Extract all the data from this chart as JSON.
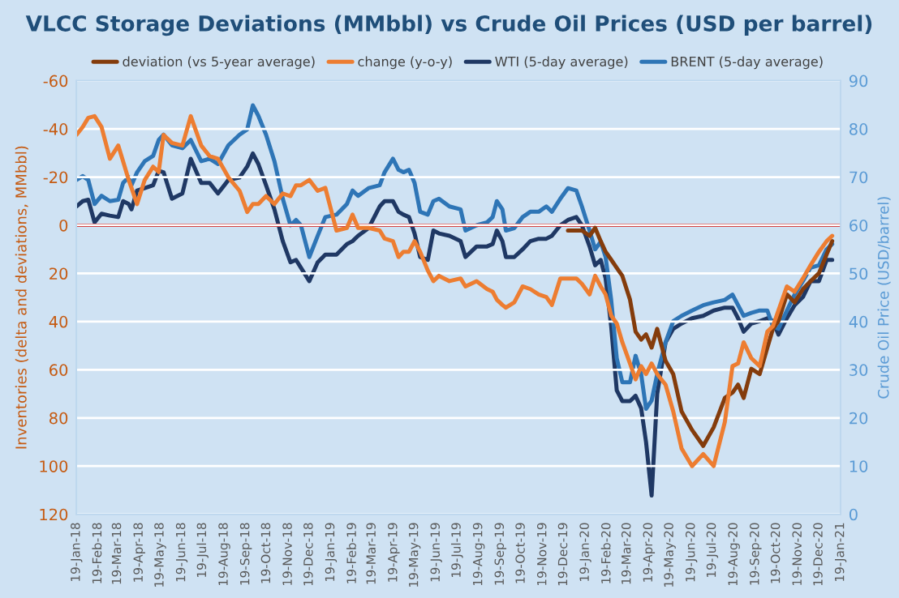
{
  "chart_data": {
    "type": "line",
    "title": "VLCC Storage Deviations (MMbbl) vs Crude Oil Prices (USD per barrel)",
    "ylabel": "Inventories (delta and deviations, MMbbl)",
    "y2label": "Crude Oil Price (USD/barrel)",
    "x": [
      "2018-01-19",
      "2018-01-28",
      "2018-02-05",
      "2018-02-14",
      "2018-02-24",
      "2018-03-08",
      "2018-03-20",
      "2018-03-27",
      "2018-04-04",
      "2018-04-08",
      "2018-04-16",
      "2018-04-27",
      "2018-05-09",
      "2018-05-17",
      "2018-05-24",
      "2018-06-05",
      "2018-06-20",
      "2018-07-02",
      "2018-07-17",
      "2018-07-29",
      "2018-08-10",
      "2018-08-25",
      "2018-09-10",
      "2018-09-21",
      "2018-09-29",
      "2018-10-07",
      "2018-10-18",
      "2018-10-30",
      "2018-11-11",
      "2018-11-22",
      "2018-11-30",
      "2018-12-07",
      "2018-12-19",
      "2018-12-31",
      "2019-01-11",
      "2019-01-27",
      "2019-02-11",
      "2019-02-19",
      "2019-02-27",
      "2019-03-14",
      "2019-03-30",
      "2019-04-06",
      "2019-04-18",
      "2019-04-26",
      "2019-05-03",
      "2019-05-11",
      "2019-05-19",
      "2019-05-27",
      "2019-06-07",
      "2019-06-15",
      "2019-06-23",
      "2019-07-08",
      "2019-07-24",
      "2019-07-31",
      "2019-08-16",
      "2019-08-31",
      "2019-09-08",
      "2019-09-14",
      "2019-09-22",
      "2019-09-27",
      "2019-10-09",
      "2019-10-21",
      "2019-11-01",
      "2019-11-13",
      "2019-11-24",
      "2019-12-02",
      "2019-12-14",
      "2019-12-25",
      "2020-01-06",
      "2020-01-14",
      "2020-01-25",
      "2020-02-02",
      "2020-02-10",
      "2020-02-17",
      "2020-02-25",
      "2020-03-04",
      "2020-03-12",
      "2020-03-23",
      "2020-03-31",
      "2020-04-08",
      "2020-04-15",
      "2020-04-23",
      "2020-05-01",
      "2020-05-13",
      "2020-05-24",
      "2020-06-05",
      "2020-06-20",
      "2020-07-06",
      "2020-07-21",
      "2020-08-06",
      "2020-08-17",
      "2020-08-25",
      "2020-09-02",
      "2020-09-13",
      "2020-09-25",
      "2020-10-06",
      "2020-10-14",
      "2020-10-22",
      "2020-11-03",
      "2020-11-14",
      "2020-11-26",
      "2020-12-07",
      "2020-12-19",
      "2020-12-30",
      "2021-01-07"
    ],
    "series": [
      {
        "name": "deviation (vs 5-year average)",
        "color": "#843c0c",
        "x": [
          "2019-12-25",
          "2020-01-06",
          "2020-01-14",
          "2020-01-25",
          "2020-02-02",
          "2020-02-10",
          "2020-02-17",
          "2020-02-25",
          "2020-03-04",
          "2020-03-12",
          "2020-03-23",
          "2020-03-31",
          "2020-04-08",
          "2020-04-15",
          "2020-04-23",
          "2020-05-01",
          "2020-05-13",
          "2020-05-24",
          "2020-06-05",
          "2020-06-20",
          "2020-07-06",
          "2020-07-21",
          "2020-08-06",
          "2020-08-17",
          "2020-08-25",
          "2020-09-02",
          "2020-09-13",
          "2020-09-25",
          "2020-10-06",
          "2020-10-14",
          "2020-10-22",
          "2020-11-03",
          "2020-11-14",
          "2020-11-26",
          "2020-12-07",
          "2020-12-19",
          "2020-12-30",
          "2021-01-07"
        ],
        "values": [
          2.2,
          2.2,
          2.2,
          4.4,
          1.1,
          6.6,
          11,
          14.3,
          17.7,
          21,
          30.9,
          44.2,
          47.5,
          45.3,
          50.8,
          43,
          56.3,
          61.8,
          77.3,
          85,
          91.6,
          83.9,
          71.7,
          69.5,
          66.2,
          71.7,
          59.6,
          61.8,
          50.8,
          43,
          39.7,
          28.7,
          32,
          26.5,
          23.2,
          19.9,
          12.1,
          6.6
        ]
      },
      {
        "name": "change (y-o-y)",
        "color": "#ed7d31",
        "values": [
          -37.5,
          -40.8,
          -44.6,
          -45.3,
          -40.8,
          -27.6,
          -33.1,
          -26.5,
          -18.8,
          -15.5,
          -8.8,
          -18.8,
          -24.3,
          -22.1,
          -37.5,
          -34.2,
          -33.1,
          -45.3,
          -33.1,
          -28.7,
          -27.6,
          -19.9,
          -14.3,
          -5.5,
          -8.8,
          -8.8,
          -12.1,
          -8.8,
          -13.2,
          -12.1,
          -16.6,
          -16.6,
          -18.8,
          -14.3,
          -15.5,
          2.2,
          1.1,
          -4.4,
          1.1,
          1.1,
          2.2,
          5.5,
          6.6,
          13.2,
          11,
          11,
          6.6,
          11,
          18.8,
          23.2,
          21,
          23.2,
          22.1,
          25.4,
          23.2,
          26.5,
          27.6,
          30.9,
          33.1,
          34.2,
          32,
          25.4,
          26.5,
          28.7,
          29.8,
          33.1,
          22.1,
          22.1,
          22.1,
          24.3,
          28.7,
          21,
          25.4,
          28.7,
          37.5,
          40.8,
          48.6,
          57.4,
          64,
          58.5,
          61.8,
          57.4,
          61.8,
          66.2,
          77.3,
          92.7,
          100,
          95,
          100,
          81.7,
          58.5,
          57.4,
          48.6,
          55.2,
          58.5,
          44.2,
          41.9,
          35.3,
          25.4,
          27.6,
          22.1,
          16.6,
          11,
          6.6,
          4.4
        ]
      },
      {
        "name": "WTI (5-day average)",
        "color": "#1f3864",
        "axis": "y2",
        "values": [
          63.9,
          65,
          65.3,
          60.6,
          62.4,
          62,
          61.7,
          65,
          64.4,
          63.3,
          67.2,
          67.7,
          68.3,
          71.3,
          71,
          65.5,
          66.6,
          73.8,
          68.8,
          68.8,
          66.6,
          69.4,
          69.9,
          72.2,
          74.9,
          72.7,
          68.3,
          63.3,
          56.7,
          52.3,
          52.8,
          51.2,
          48.4,
          52.3,
          53.9,
          53.9,
          56.1,
          56.7,
          57.8,
          59.4,
          63.9,
          65,
          65,
          62.8,
          62.2,
          61.7,
          58.3,
          53.4,
          52.8,
          58.9,
          58.3,
          57.8,
          56.7,
          53.4,
          55.6,
          55.6,
          56.1,
          58.9,
          56.7,
          53.4,
          53.4,
          55,
          56.7,
          57.2,
          57.2,
          57.8,
          60,
          61.1,
          61.7,
          60,
          55.6,
          51.7,
          52.8,
          49,
          39,
          25.7,
          23.5,
          23.5,
          24.6,
          22,
          15,
          3.9,
          25,
          35.7,
          38.5,
          39.6,
          40.7,
          41.2,
          42.3,
          42.9,
          42.9,
          40.7,
          37.9,
          39.6,
          40.1,
          40.7,
          40.1,
          37.3,
          40.7,
          43.4,
          45.1,
          48.4,
          48.4,
          52.8,
          52.8
        ]
      },
      {
        "name": "BRENT (5-day average)",
        "color": "#2e75b6",
        "axis": "y2",
        "values": [
          69.4,
          70.2,
          69.4,
          64.4,
          66.1,
          65,
          65.3,
          68.8,
          70,
          68.3,
          71,
          73.3,
          74.4,
          77.7,
          78.8,
          76.6,
          76,
          77.7,
          73.3,
          73.8,
          72.7,
          76.6,
          78.8,
          79.9,
          84.9,
          82.7,
          78.8,
          73.3,
          65.5,
          60,
          61.1,
          60,
          53.4,
          57.8,
          61.7,
          62.2,
          64.4,
          67.2,
          66.1,
          67.7,
          68.3,
          71,
          73.8,
          71.5,
          71,
          71.5,
          68.8,
          62.8,
          62.2,
          65,
          65.5,
          63.9,
          63.3,
          58.9,
          60,
          60.6,
          61.7,
          65,
          63.3,
          58.9,
          59.4,
          61.7,
          62.8,
          62.8,
          63.9,
          62.8,
          65.5,
          67.7,
          67.2,
          63.9,
          58.9,
          55,
          56.6,
          53.4,
          44.5,
          32.4,
          27.4,
          27.4,
          32.9,
          29.1,
          21.9,
          23.6,
          29.1,
          35.7,
          40.1,
          41.2,
          42.3,
          43.4,
          44,
          44.5,
          45.6,
          43.4,
          41.2,
          41.8,
          42.3,
          42.3,
          39,
          38.5,
          42.3,
          45.6,
          48.4,
          51.2,
          51.7,
          55,
          56.1
        ]
      }
    ],
    "xlim": [
      "2018-01-19",
      "2021-01-19"
    ],
    "xticks": [
      {
        "value": "2018-01-19",
        "label": "19-Jan-18"
      },
      {
        "value": "2018-02-19",
        "label": "19-Feb-18"
      },
      {
        "value": "2018-03-19",
        "label": "19-Mar-18"
      },
      {
        "value": "2018-04-19",
        "label": "19-Apr-18"
      },
      {
        "value": "2018-05-19",
        "label": "19-May-18"
      },
      {
        "value": "2018-06-19",
        "label": "19-Jun-18"
      },
      {
        "value": "2018-07-19",
        "label": "19-Jul-18"
      },
      {
        "value": "2018-08-19",
        "label": "19-Aug-18"
      },
      {
        "value": "2018-09-19",
        "label": "19-Sep-18"
      },
      {
        "value": "2018-10-19",
        "label": "19-Oct-18"
      },
      {
        "value": "2018-11-19",
        "label": "19-Nov-18"
      },
      {
        "value": "2018-12-19",
        "label": "19-Dec-18"
      },
      {
        "value": "2019-01-19",
        "label": "19-Jan-19"
      },
      {
        "value": "2019-02-19",
        "label": "19-Feb-19"
      },
      {
        "value": "2019-03-19",
        "label": "19-Mar-19"
      },
      {
        "value": "2019-04-19",
        "label": "19-Apr-19"
      },
      {
        "value": "2019-05-19",
        "label": "19-May-19"
      },
      {
        "value": "2019-06-19",
        "label": "19-Jun-19"
      },
      {
        "value": "2019-07-19",
        "label": "19-Jul-19"
      },
      {
        "value": "2019-08-19",
        "label": "19-Aug-19"
      },
      {
        "value": "2019-09-19",
        "label": "19-Sep-19"
      },
      {
        "value": "2019-10-19",
        "label": "19-Oct-19"
      },
      {
        "value": "2019-11-19",
        "label": "19-Nov-19"
      },
      {
        "value": "2019-12-19",
        "label": "19-Dec-19"
      },
      {
        "value": "2020-01-19",
        "label": "19-Jan-20"
      },
      {
        "value": "2020-02-19",
        "label": "19-Feb-20"
      },
      {
        "value": "2020-03-19",
        "label": "19-Mar-20"
      },
      {
        "value": "2020-04-19",
        "label": "19-Apr-20"
      },
      {
        "value": "2020-05-19",
        "label": "19-May-20"
      },
      {
        "value": "2020-06-19",
        "label": "19-Jun-20"
      },
      {
        "value": "2020-07-19",
        "label": "19-Jul-20"
      },
      {
        "value": "2020-08-19",
        "label": "19-Aug-20"
      },
      {
        "value": "2020-09-19",
        "label": "19-Sep-20"
      },
      {
        "value": "2020-10-19",
        "label": "19-Oct-20"
      },
      {
        "value": "2020-11-19",
        "label": "19-Nov-20"
      },
      {
        "value": "2020-12-19",
        "label": "19-Dec-20"
      },
      {
        "value": "2021-01-19",
        "label": "19-Jan-21"
      }
    ],
    "ylim": [
      120,
      -60
    ],
    "yticks": [
      -60,
      -40,
      -20,
      0,
      20,
      40,
      60,
      80,
      100,
      120
    ],
    "y2lim": [
      0,
      90
    ],
    "y2ticks": [
      0,
      10,
      20,
      30,
      40,
      50,
      60,
      70,
      80,
      90
    ],
    "ref_lines": [
      {
        "axis": "y",
        "value": 0,
        "color": "#c00000"
      }
    ],
    "grid": "y",
    "legend": "top",
    "marker": "none",
    "line_style": "solid"
  }
}
